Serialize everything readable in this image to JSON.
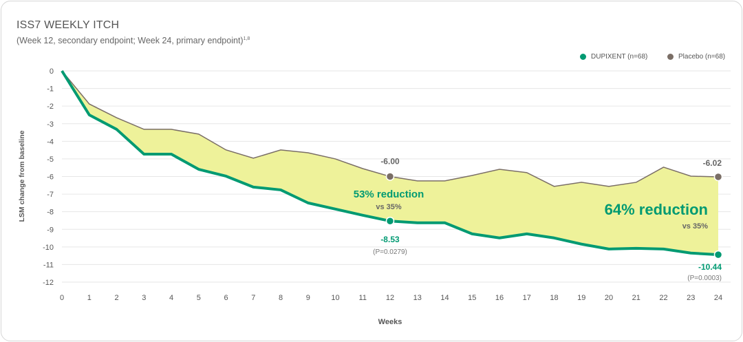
{
  "header": {
    "title": "ISS7 WEEKLY ITCH",
    "subtitle": "(Week 12, secondary endpoint; Week 24, primary endpoint)",
    "subtitle_sup": "1,8"
  },
  "chart_data": {
    "type": "line",
    "xlabel": "Weeks",
    "ylabel": "LSM change from baseline",
    "xlim": [
      0,
      24
    ],
    "ylim": [
      -12,
      0
    ],
    "grid": true,
    "legend_placement": "top-right",
    "x": [
      0,
      1,
      2,
      3,
      4,
      5,
      6,
      7,
      8,
      9,
      10,
      11,
      12,
      13,
      14,
      15,
      16,
      17,
      18,
      19,
      20,
      21,
      22,
      23,
      24
    ],
    "x_ticks": [
      "0",
      "1",
      "2",
      "3",
      "4",
      "5",
      "6",
      "7",
      "8",
      "9",
      "10",
      "11",
      "12",
      "13",
      "14",
      "15",
      "16",
      "17",
      "18",
      "19",
      "20",
      "21",
      "22",
      "23",
      "24"
    ],
    "y_ticks": [
      "0",
      "-1",
      "-2",
      "-3",
      "-4",
      "-5",
      "-6",
      "-7",
      "-8",
      "-9",
      "-10",
      "-11",
      "-12"
    ],
    "series": [
      {
        "name": "DUPIXENT (n=68)",
        "color": "#009a72",
        "values": [
          0,
          -2.5,
          -3.32,
          -4.73,
          -4.73,
          -5.59,
          -5.98,
          -6.6,
          -6.76,
          -7.5,
          -7.85,
          -8.2,
          -8.53,
          -8.63,
          -8.63,
          -9.26,
          -9.49,
          -9.26,
          -9.49,
          -9.84,
          -10.12,
          -10.08,
          -10.12,
          -10.35,
          -10.44
        ]
      },
      {
        "name": "Placebo (n=68)",
        "color": "#7a6e66",
        "values": [
          0,
          -1.88,
          -2.66,
          -3.32,
          -3.32,
          -3.59,
          -4.49,
          -4.96,
          -4.49,
          -4.65,
          -5.0,
          -5.55,
          -6.0,
          -6.25,
          -6.25,
          -5.94,
          -5.59,
          -5.78,
          -6.56,
          -6.33,
          -6.56,
          -6.33,
          -5.47,
          -5.98,
          -6.02
        ]
      }
    ],
    "fill_color": "#eef29a",
    "annotations": {
      "w12_placebo": "-6.00",
      "w12_dupixent": "-8.53",
      "w12_p": "(P=0.0279)",
      "w12_reduction": "53% reduction",
      "w12_vs": "vs 35%",
      "w24_placebo": "-6.02",
      "w24_dupixent": "-10.44",
      "w24_p": "(P=0.0003)",
      "w24_reduction": "64% reduction",
      "w24_vs": "vs 35%"
    }
  }
}
